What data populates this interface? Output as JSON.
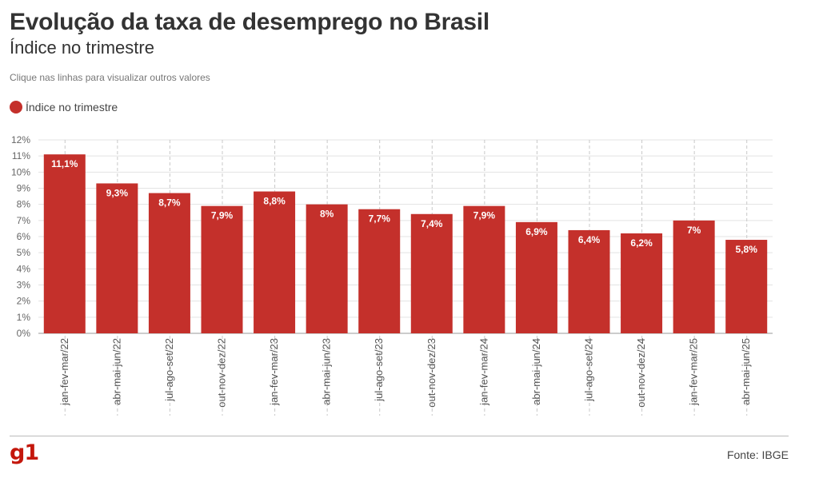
{
  "header": {
    "title": "Evolução da taxa de desemprego no Brasil",
    "subtitle": "Índice no trimestre",
    "hint": "Clique nas linhas para visualizar outros valores"
  },
  "legend": {
    "label": "Índice no trimestre",
    "color": "#c4302b"
  },
  "footer": {
    "logo": "g1",
    "logo_color": "#c4170c",
    "source": "Fonte: IBGE"
  },
  "chart_data": {
    "type": "bar",
    "title": "Evolução da taxa de desemprego no Brasil",
    "subtitle": "Índice no trimestre",
    "categories": [
      "jan-fev-mar/22",
      "abr-mai-jun/22",
      "jul-ago-set/22",
      "out-nov-dez/22",
      "jan-fev-mar/23",
      "abr-mai-jun/23",
      "jul-ago-set/23",
      "out-nov-dez/23",
      "jan-fev-mar/24",
      "abr-mai-jun/24",
      "jul-ago-set/24",
      "out-nov-dez/24",
      "jan-fev-mar/25",
      "abr-mai-jun/25"
    ],
    "series": [
      {
        "name": "Índice no trimestre",
        "values": [
          11.1,
          9.3,
          8.7,
          7.9,
          8.8,
          8.0,
          7.7,
          7.4,
          7.9,
          6.9,
          6.4,
          6.2,
          7.0,
          5.8
        ],
        "data_labels": [
          "11,1%",
          "9,3%",
          "8,7%",
          "7,9%",
          "8,8%",
          "8%",
          "7,7%",
          "7,4%",
          "7,9%",
          "6,9%",
          "6,4%",
          "6,2%",
          "7%",
          "5,8%"
        ],
        "color": "#c4302b"
      }
    ],
    "y_ticks": [
      "0%",
      "1%",
      "2%",
      "3%",
      "4%",
      "5%",
      "6%",
      "7%",
      "8%",
      "9%",
      "10%",
      "11%",
      "12%"
    ],
    "ylim": [
      0,
      12
    ],
    "xlabel": "",
    "ylabel": "",
    "grid": true,
    "legend_position": "top-left"
  }
}
